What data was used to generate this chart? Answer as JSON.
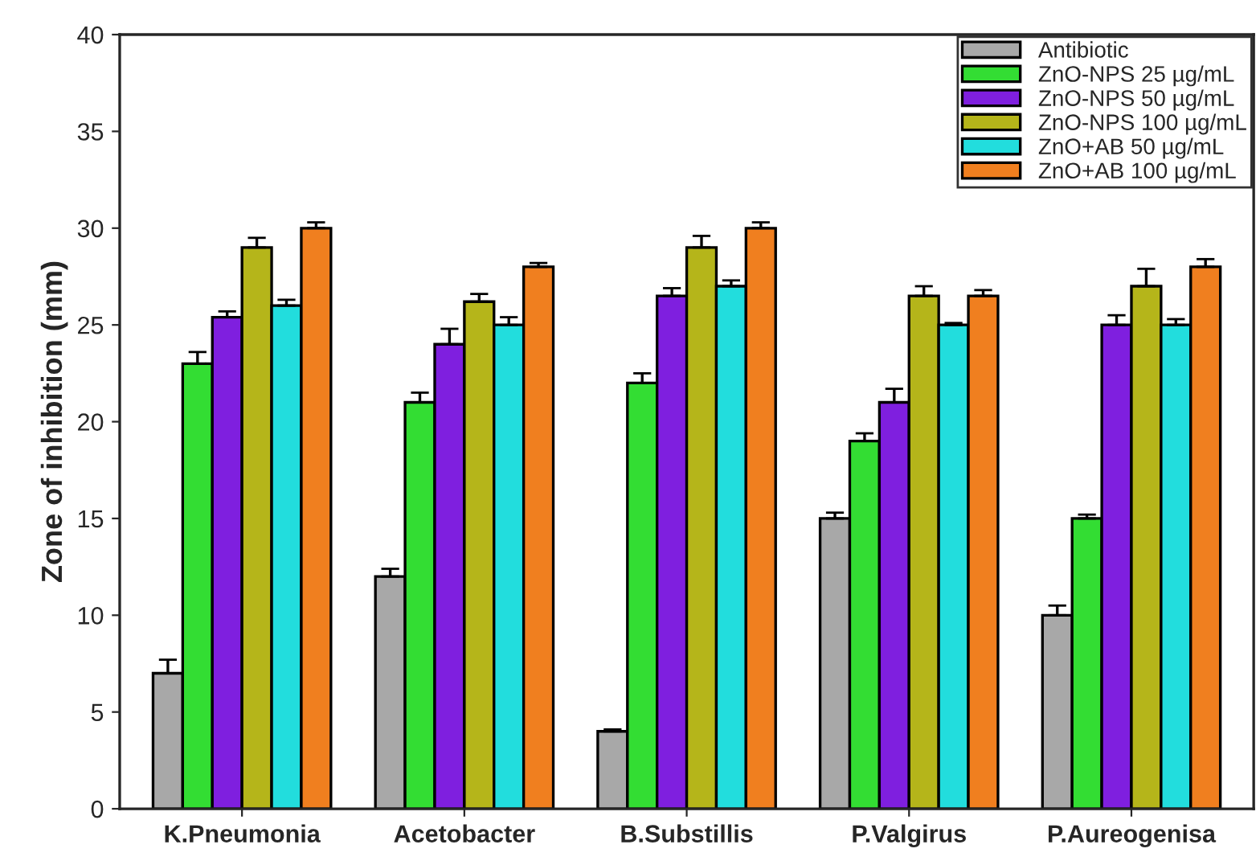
{
  "chart_data": {
    "type": "bar",
    "ylabel": "Zone of inhibition (mm)",
    "categories": [
      "K.Pneumonia",
      "Acetobacter",
      "B.Substillis",
      "P.Valgirus",
      "P.Aureogenisa"
    ],
    "series": [
      {
        "name": "Antibiotic",
        "color": "#a8a8a8",
        "values": [
          7,
          12,
          4,
          15,
          10
        ],
        "errors": [
          0.7,
          0.4,
          0.1,
          0.3,
          0.5
        ]
      },
      {
        "name": "ZnO-NPS 25 µg/mL",
        "color": "#33dd33",
        "values": [
          23,
          21,
          22,
          19,
          15
        ],
        "errors": [
          0.6,
          0.5,
          0.5,
          0.4,
          0.2
        ]
      },
      {
        "name": "ZnO-NPS 50 µg/mL",
        "color": "#7f1fdf",
        "values": [
          25.4,
          24,
          26.5,
          21,
          25
        ],
        "errors": [
          0.3,
          0.8,
          0.4,
          0.7,
          0.5
        ]
      },
      {
        "name": "ZnO-NPS 100 µg/mL",
        "color": "#b5b51a",
        "values": [
          29,
          26.2,
          29,
          26.5,
          27
        ],
        "errors": [
          0.5,
          0.4,
          0.6,
          0.5,
          0.9
        ]
      },
      {
        "name": "ZnO+AB 50 µg/mL",
        "color": "#22dddd",
        "values": [
          26,
          25,
          27,
          25,
          25
        ],
        "errors": [
          0.3,
          0.4,
          0.3,
          0.1,
          0.3
        ]
      },
      {
        "name": "ZnO+AB 100 µg/mL",
        "color": "#f07f1f",
        "values": [
          30,
          28,
          30,
          26.5,
          28
        ],
        "errors": [
          0.3,
          0.2,
          0.3,
          0.3,
          0.4
        ]
      }
    ],
    "ylim": [
      0,
      40
    ],
    "yticks": [
      0,
      5,
      10,
      15,
      20,
      25,
      30,
      35,
      40
    ],
    "legend": "top right",
    "grid": false
  }
}
